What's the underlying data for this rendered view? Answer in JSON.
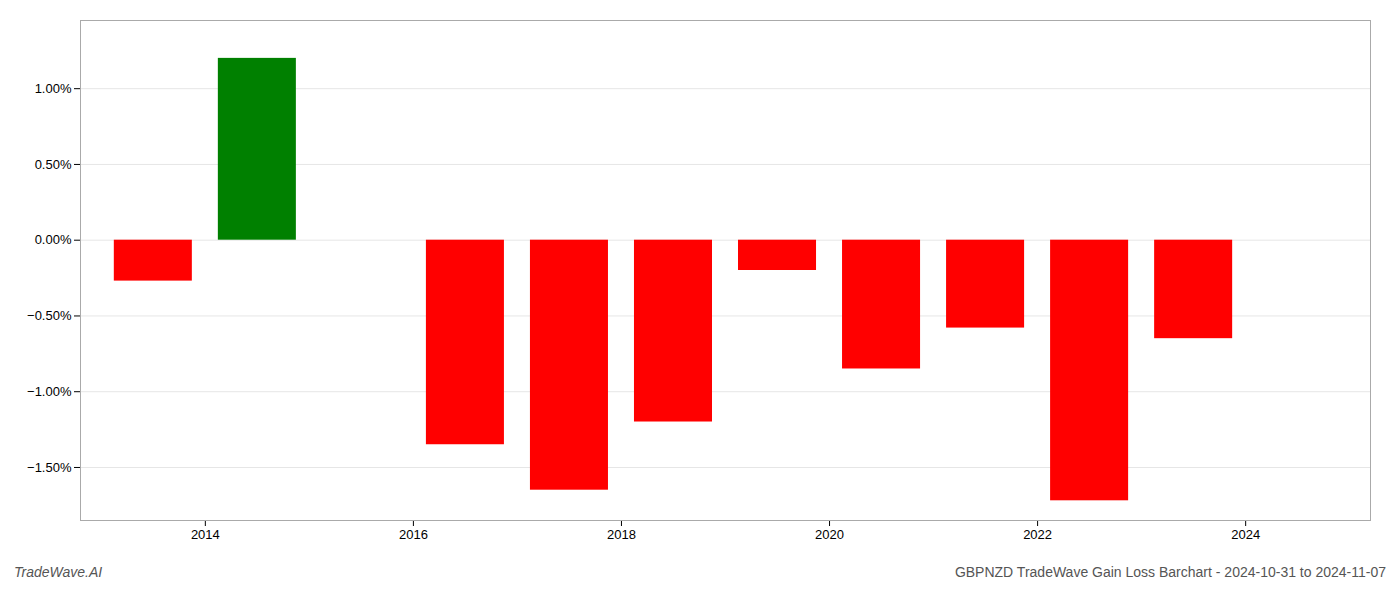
{
  "chart_data": {
    "type": "bar",
    "title": "GBPNZD TradeWave Gain Loss Barchart - 2024-10-31 to 2024-11-07",
    "annotations": [
      "TradeWave.AI"
    ],
    "x": [
      2013.5,
      2014.5,
      2016.5,
      2017.5,
      2018.5,
      2019.5,
      2020.5,
      2021.5,
      2022.5,
      2023.5
    ],
    "values": [
      -0.27,
      1.2,
      -1.35,
      -1.65,
      -1.2,
      -0.2,
      -0.85,
      -0.58,
      -1.72,
      -0.65
    ],
    "colors": [
      "#ff0000",
      "#008000",
      "#ff0000",
      "#ff0000",
      "#ff0000",
      "#ff0000",
      "#ff0000",
      "#ff0000",
      "#ff0000",
      "#ff0000"
    ],
    "xlim": [
      2012.8,
      2025.2
    ],
    "xticks": [
      2014,
      2016,
      2018,
      2020,
      2022,
      2024
    ],
    "ylim": [
      -1.85,
      1.45
    ],
    "yticks": [
      {
        "value": -1.5,
        "label": "−1.50%"
      },
      {
        "value": -1.0,
        "label": "−1.00%"
      },
      {
        "value": -0.5,
        "label": "−0.50%"
      },
      {
        "value": 0.0,
        "label": "0.00%"
      },
      {
        "value": 0.5,
        "label": "0.50%"
      },
      {
        "value": 1.0,
        "label": "1.00%"
      }
    ],
    "grid": true
  }
}
